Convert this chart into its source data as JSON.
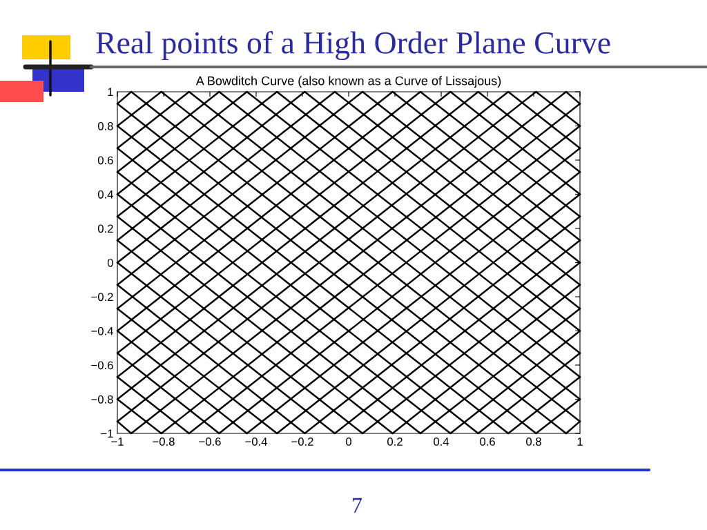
{
  "chart_data": {
    "type": "line",
    "title": "Real points of a High Order Plane Curve",
    "subtitle": "A Bowditch Curve (also known as a Curve of Lissajous)",
    "annotations": [
      "7"
    ],
    "color": "#000000",
    "series": [
      {
        "x": [
          -1,
          -0.06,
          1
        ],
        "values": [
          0,
          -1,
          0.13
        ]
      },
      {
        "x": [
          1,
          0.19,
          -1
        ],
        "values": [
          0.13,
          1,
          -0.27
        ]
      },
      {
        "x": [
          -1,
          -0.31,
          1
        ],
        "values": [
          -0.27,
          -1,
          0.4
        ]
      },
      {
        "x": [
          1,
          0.44,
          -1
        ],
        "values": [
          0.4,
          1,
          -0.53
        ]
      },
      {
        "x": [
          -1,
          -0.56,
          1
        ],
        "values": [
          -0.53,
          -1,
          0.67
        ]
      },
      {
        "x": [
          1,
          0.69,
          -1
        ],
        "values": [
          0.67,
          1,
          -0.8
        ]
      },
      {
        "x": [
          -1,
          -0.81,
          1
        ],
        "values": [
          -0.8,
          -1,
          0.93
        ]
      },
      {
        "x": [
          1,
          0.94,
          -0.94,
          -1
        ],
        "values": [
          0.93,
          1,
          -1,
          -0.93
        ]
      },
      {
        "x": [
          -1,
          0.81,
          1
        ],
        "values": [
          -0.93,
          1,
          0.8
        ]
      },
      {
        "x": [
          1,
          -0.69,
          -1
        ],
        "values": [
          0.8,
          -1,
          -0.67
        ]
      },
      {
        "x": [
          -1,
          0.56,
          1
        ],
        "values": [
          -0.67,
          1,
          0.53
        ]
      },
      {
        "x": [
          1,
          -0.44,
          -1
        ],
        "values": [
          0.53,
          -1,
          -0.4
        ]
      },
      {
        "x": [
          -1,
          0.31,
          1
        ],
        "values": [
          -0.4,
          1,
          0.27
        ]
      },
      {
        "x": [
          1,
          -0.19,
          -1
        ],
        "values": [
          0.27,
          -1,
          -0.13
        ]
      },
      {
        "x": [
          -1,
          0.06,
          1
        ],
        "values": [
          -0.13,
          1,
          0
        ]
      },
      {
        "x": [
          1,
          0.06,
          -1
        ],
        "values": [
          0,
          -1,
          0.13
        ]
      },
      {
        "x": [
          -1,
          -0.19,
          1
        ],
        "values": [
          0.13,
          1,
          -0.27
        ]
      },
      {
        "x": [
          1,
          0.31,
          -1
        ],
        "values": [
          -0.27,
          -1,
          0.4
        ]
      },
      {
        "x": [
          -1,
          -0.44,
          1
        ],
        "values": [
          0.4,
          1,
          -0.53
        ]
      },
      {
        "x": [
          1,
          0.56,
          -1
        ],
        "values": [
          -0.53,
          -1,
          0.67
        ]
      },
      {
        "x": [
          -1,
          -0.69,
          1
        ],
        "values": [
          0.67,
          1,
          -0.8
        ]
      },
      {
        "x": [
          1,
          0.81,
          -1
        ],
        "values": [
          -0.8,
          -1,
          0.93
        ]
      },
      {
        "x": [
          -1,
          -0.94,
          0.94,
          1
        ],
        "values": [
          0.93,
          1,
          -1,
          -0.93
        ]
      },
      {
        "x": [
          1,
          -0.81,
          -1
        ],
        "values": [
          -0.93,
          1,
          0.8
        ]
      },
      {
        "x": [
          -1,
          0.69,
          1
        ],
        "values": [
          0.8,
          -1,
          -0.67
        ]
      },
      {
        "x": [
          1,
          -0.56,
          -1
        ],
        "values": [
          -0.67,
          1,
          0.53
        ]
      },
      {
        "x": [
          -1,
          0.44,
          1
        ],
        "values": [
          0.53,
          -1,
          -0.4
        ]
      },
      {
        "x": [
          1,
          -0.31,
          -1
        ],
        "values": [
          -0.4,
          1,
          0.27
        ]
      },
      {
        "x": [
          -1,
          0.19,
          1
        ],
        "values": [
          0.27,
          -1,
          -0.13
        ]
      },
      {
        "x": [
          1,
          -0.06,
          -1
        ],
        "values": [
          -0.13,
          1,
          0
        ]
      }
    ],
    "xlim": [
      -1,
      1
    ],
    "ylim": [
      -1,
      1
    ],
    "xticks": [
      {
        "value": -1,
        "label": "−1"
      },
      {
        "value": -0.8,
        "label": "−0.8"
      },
      {
        "value": -0.6,
        "label": "−0.6"
      },
      {
        "value": -0.4,
        "label": "−0.4"
      },
      {
        "value": -0.2,
        "label": "−0.2"
      },
      0,
      0.2,
      0.4,
      0.6,
      0.8,
      1
    ],
    "yticks": [
      {
        "value": -1,
        "label": "−1"
      },
      {
        "value": -0.8,
        "label": "−0.8"
      },
      {
        "value": -0.6,
        "label": "−0.6"
      },
      {
        "value": -0.4,
        "label": "−0.4"
      },
      {
        "value": -0.2,
        "label": "−0.2"
      },
      0,
      0.2,
      0.4,
      0.6,
      0.8,
      1
    ]
  }
}
